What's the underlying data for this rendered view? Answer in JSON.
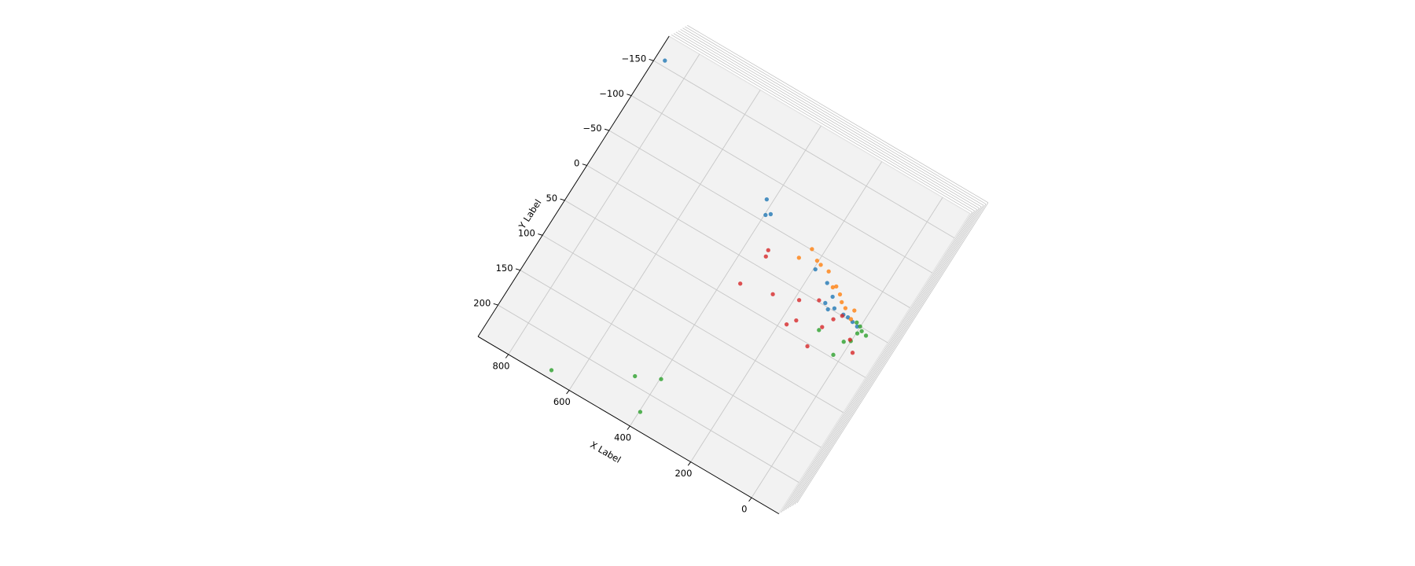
{
  "chart_data": {
    "type": "scatter3d",
    "xlabel": "X Label",
    "ylabel": "Y Label",
    "xlim": [
      -90,
      900
    ],
    "ylim": [
      -185,
      245
    ],
    "xticks": [
      0,
      200,
      400,
      600,
      800
    ],
    "yticks": [
      {
        "value": -150,
        "label": "−150"
      },
      {
        "value": -100,
        "label": "−100"
      },
      {
        "value": -50,
        "label": "−50"
      },
      0,
      50,
      100,
      150,
      200
    ],
    "grid": true,
    "series": [
      {
        "color": "#1f77b4",
        "x": [
          873,
          418,
          397,
          386,
          195,
          146,
          112,
          120,
          104,
          90,
          44,
          26,
          8,
          59
        ],
        "y": [
          -157,
          -75,
          -58,
          -62,
          -32,
          -25,
          -14,
          -3,
          2,
          -3,
          -2,
          0,
          2,
          -2
        ]
      },
      {
        "color": "#ff7f0e",
        "x": [
          234,
          252,
          204,
          189,
          160,
          126,
          119,
          98,
          82,
          64,
          39,
          34
        ],
        "y": [
          -51,
          -34,
          -42,
          -40,
          -38,
          -24,
          -27,
          -21,
          -14,
          -10,
          -13,
          -2
        ]
      },
      {
        "color": "#2ca02c",
        "x": [
          673,
          464,
          397,
          397,
          22,
          94,
          17,
          1,
          -3,
          -10,
          -27,
          1,
          15
        ],
        "y": [
          235,
          190,
          177,
          224,
          46,
          29,
          26,
          21,
          9,
          4,
          6,
          0,
          -2
        ]
      },
      {
        "color": "#d62728",
        "x": [
          337,
          333,
          353,
          259,
          187,
          139,
          180,
          163,
          97,
          91,
          76,
          -21,
          5,
          60
        ],
        "y": [
          -23,
          -15,
          29,
          20,
          10,
          -2,
          43,
          33,
          53,
          24,
          9,
          32,
          20,
          0
        ]
      }
    ]
  }
}
